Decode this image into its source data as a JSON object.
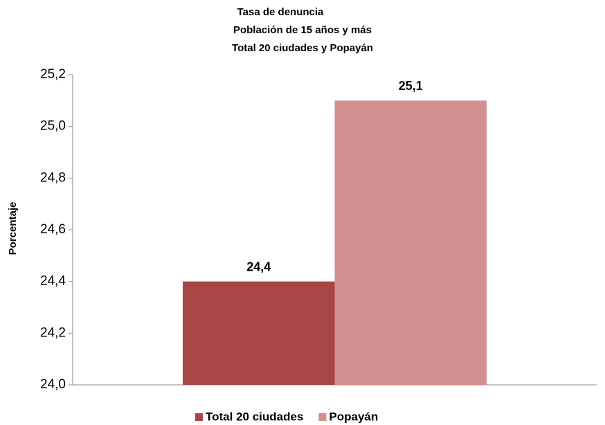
{
  "chart_data": {
    "type": "bar",
    "title": [
      "Tasa de denuncia",
      "Población de 15 años y más",
      "Total 20 ciudades y Popayán"
    ],
    "y_label": "Porcentaje",
    "categories": [
      null
    ],
    "series": [
      {
        "name": "Total 20 ciudades",
        "color": "#a84646",
        "values": [
          24.4
        ],
        "value_labels": [
          "24,4"
        ]
      },
      {
        "name": "Popayán",
        "color": "#d39090",
        "values": [
          25.1
        ],
        "value_labels": [
          "25,1"
        ]
      }
    ],
    "ylim": [
      24.0,
      25.2
    ],
    "yticks": [
      {
        "value": 24.0,
        "label": "24,0"
      },
      {
        "value": 24.2,
        "label": "24,2"
      },
      {
        "value": 24.4,
        "label": "24,4"
      },
      {
        "value": 24.6,
        "label": "24,6"
      },
      {
        "value": 24.8,
        "label": "24,8"
      },
      {
        "value": 25.0,
        "label": "25,0"
      },
      {
        "value": 25.2,
        "label": "25,2"
      }
    ],
    "grid": false,
    "legend": "bottom"
  }
}
